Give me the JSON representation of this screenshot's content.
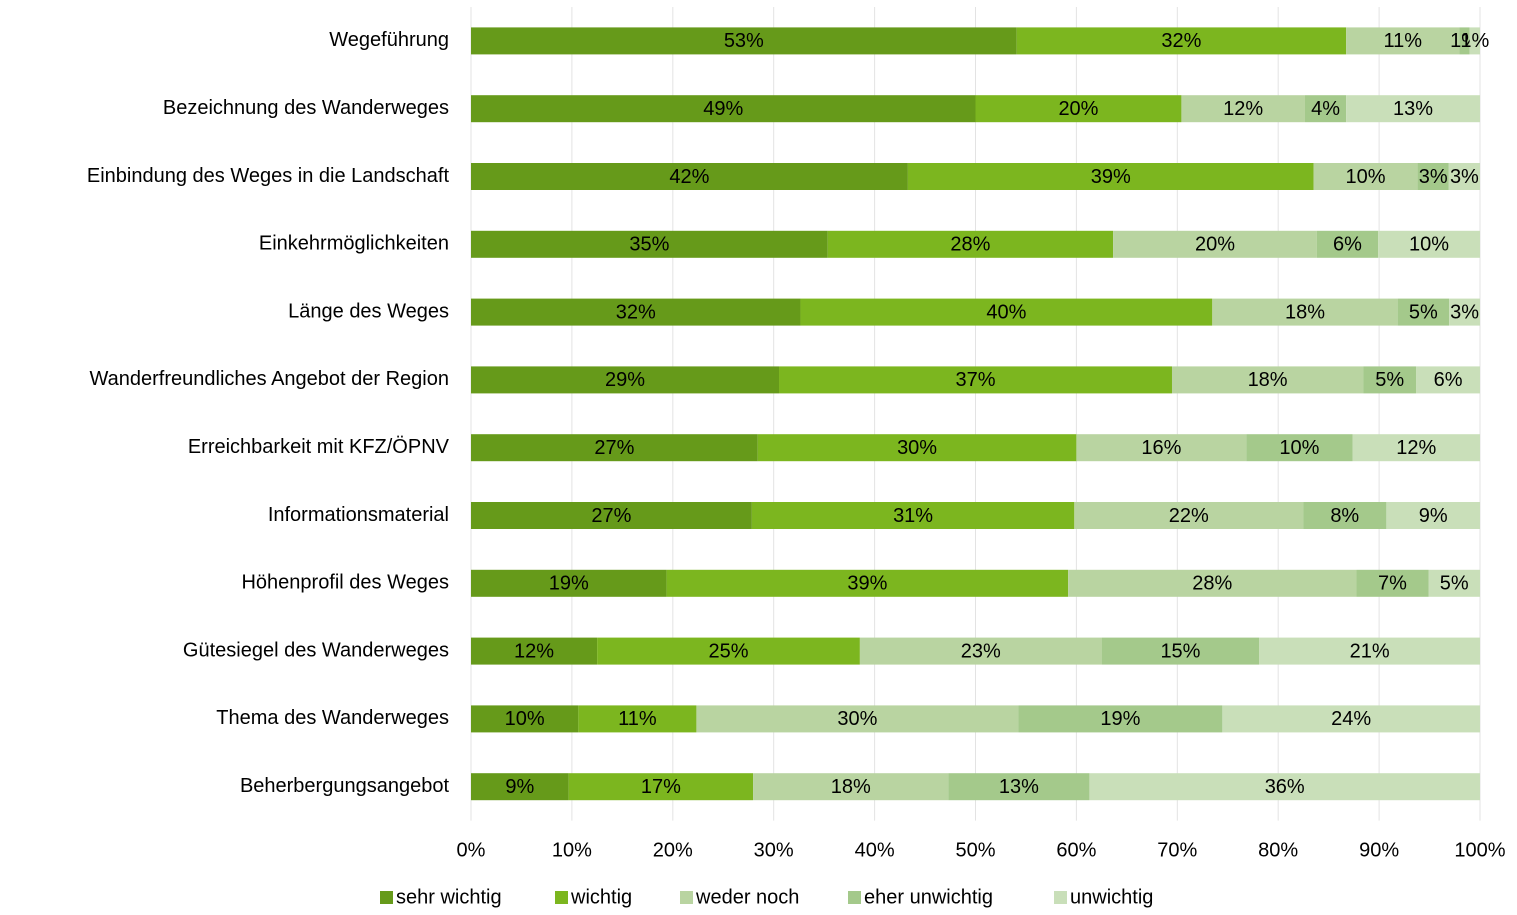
{
  "chart_data": {
    "type": "bar",
    "orientation": "horizontal",
    "stacking": "percent",
    "categories": [
      "Wegeführung",
      "Bezeichnung des Wanderweges",
      "Einbindung des Weges in die Landschaft",
      "Einkehrmöglichkeiten",
      "Länge des Weges",
      "Wanderfreundliches Angebot der Region",
      "Erreichbarkeit mit KFZ/ÖPNV",
      "Informationsmaterial",
      "Höhenprofil des Weges",
      "Gütesiegel des Wanderweges",
      "Thema des Wanderweges",
      "Beherbergungsangebot"
    ],
    "series": [
      {
        "name": "sehr wichtig",
        "color": "#669a1a",
        "values": [
          53,
          49,
          42,
          35,
          32,
          29,
          27,
          27,
          19,
          12,
          10,
          9
        ],
        "value_labels": [
          "53%",
          "49%",
          "42%",
          "35%",
          "32%",
          "29%",
          "27%",
          "27%",
          "19%",
          "12%",
          "10%",
          "9%"
        ]
      },
      {
        "name": "wichtig",
        "color": "#7cb61f",
        "values": [
          32,
          20,
          39,
          28,
          40,
          37,
          30,
          31,
          39,
          25,
          11,
          17
        ],
        "value_labels": [
          "32%",
          "20%",
          "39%",
          "28%",
          "40%",
          "37%",
          "30%",
          "31%",
          "39%",
          "25%",
          "11%",
          "17%"
        ]
      },
      {
        "name": "weder noch",
        "color": "#b9d4a1",
        "values": [
          11,
          12,
          10,
          20,
          18,
          18,
          16,
          22,
          28,
          23,
          30,
          18
        ],
        "value_labels": [
          "11%",
          "12%",
          "10%",
          "20%",
          "18%",
          "18%",
          "16%",
          "22%",
          "28%",
          "23%",
          "30%",
          "18%"
        ]
      },
      {
        "name": "eher unwichtig",
        "color": "#a4c98b",
        "values": [
          1,
          4,
          3,
          6,
          5,
          5,
          10,
          8,
          7,
          15,
          19,
          13
        ],
        "value_labels": [
          "1%",
          "4%",
          "3%",
          "6%",
          "5%",
          "5%",
          "10%",
          "8%",
          "7%",
          "15%",
          "19%",
          "13%"
        ]
      },
      {
        "name": "unwichtig",
        "color": "#c9dfb9",
        "values": [
          1,
          13,
          3,
          10,
          3,
          6,
          12,
          9,
          5,
          21,
          24,
          36
        ],
        "value_labels": [
          "1%",
          "13%",
          "3%",
          "10%",
          "3%",
          "6%",
          "12%",
          "9%",
          "5%",
          "21%",
          "24%",
          "36%"
        ]
      }
    ],
    "xlim": [
      0,
      100
    ],
    "xticks": [
      {
        "value": 0,
        "label": "0%"
      },
      {
        "value": 10,
        "label": "10%"
      },
      {
        "value": 20,
        "label": "20%"
      },
      {
        "value": 30,
        "label": "30%"
      },
      {
        "value": 40,
        "label": "40%"
      },
      {
        "value": 50,
        "label": "50%"
      },
      {
        "value": 60,
        "label": "60%"
      },
      {
        "value": 70,
        "label": "70%"
      },
      {
        "value": 80,
        "label": "80%"
      },
      {
        "value": 90,
        "label": "90%"
      },
      {
        "value": 100,
        "label": "100%"
      }
    ],
    "grid": true,
    "legend": "bottom"
  }
}
